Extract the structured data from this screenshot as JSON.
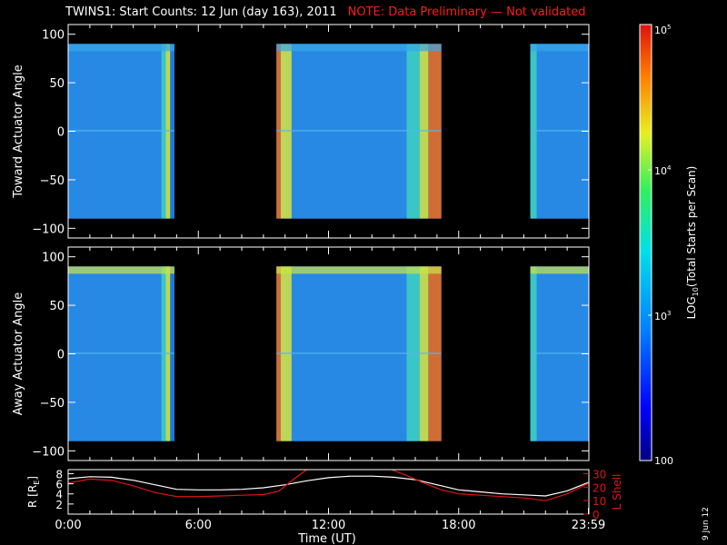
{
  "title": "TWINS1: Start Counts: 12 Jun (day 163), 2011",
  "note": "NOTE: Data Preliminary — Not validated",
  "date_stamp": "9 Jun 12",
  "colors": {
    "background": "#000000",
    "axes": "#ffffff",
    "note": "#ff1a1a",
    "lshell": "#e01414",
    "radius": "#ffffff"
  },
  "chart_data": [
    {
      "type": "heatmap",
      "panel": "toward",
      "ylabel": "Toward Actuator Angle",
      "ylim": [
        -110,
        110
      ],
      "yticks": [
        100,
        50,
        0,
        -50,
        -100
      ],
      "xlim_hours": [
        0,
        24
      ],
      "data_ylim": [
        -90,
        90
      ],
      "coverage_hours": [
        [
          0.0,
          4.9
        ],
        [
          9.6,
          17.2
        ],
        [
          21.3,
          24.0
        ]
      ],
      "value_bands": [
        {
          "t0": 0.0,
          "t1": 4.3,
          "level": "low"
        },
        {
          "t0": 4.3,
          "t1": 4.5,
          "level": "mid"
        },
        {
          "t0": 4.5,
          "t1": 4.7,
          "level": "high"
        },
        {
          "t0": 9.6,
          "t1": 9.8,
          "level": "max"
        },
        {
          "t0": 9.8,
          "t1": 10.3,
          "level": "high"
        },
        {
          "t0": 10.3,
          "t1": 15.6,
          "level": "low"
        },
        {
          "t0": 15.6,
          "t1": 16.2,
          "level": "mid"
        },
        {
          "t0": 16.2,
          "t1": 16.6,
          "level": "high"
        },
        {
          "t0": 16.6,
          "t1": 17.2,
          "level": "max"
        },
        {
          "t0": 21.3,
          "t1": 21.6,
          "level": "mid"
        },
        {
          "t0": 21.6,
          "t1": 24.0,
          "level": "low"
        }
      ]
    },
    {
      "type": "heatmap",
      "panel": "away",
      "ylabel": "Away Actuator Angle",
      "ylim": [
        -110,
        110
      ],
      "yticks": [
        100,
        50,
        0,
        -50,
        -100
      ],
      "xlim_hours": [
        0,
        24
      ],
      "data_ylim": [
        -90,
        90
      ],
      "coverage_hours": [
        [
          0.0,
          4.9
        ],
        [
          9.6,
          17.2
        ],
        [
          21.3,
          24.0
        ]
      ],
      "value_bands": [
        {
          "t0": 0.0,
          "t1": 4.3,
          "level": "low"
        },
        {
          "t0": 4.3,
          "t1": 4.5,
          "level": "mid"
        },
        {
          "t0": 4.5,
          "t1": 4.7,
          "level": "high"
        },
        {
          "t0": 9.6,
          "t1": 9.8,
          "level": "max"
        },
        {
          "t0": 9.8,
          "t1": 10.3,
          "level": "high"
        },
        {
          "t0": 10.3,
          "t1": 15.6,
          "level": "low"
        },
        {
          "t0": 15.6,
          "t1": 16.2,
          "level": "mid"
        },
        {
          "t0": 16.2,
          "t1": 16.6,
          "level": "high"
        },
        {
          "t0": 16.6,
          "t1": 17.2,
          "level": "max"
        },
        {
          "t0": 21.3,
          "t1": 21.6,
          "level": "mid"
        },
        {
          "t0": 21.6,
          "t1": 24.0,
          "level": "low"
        }
      ]
    },
    {
      "type": "line",
      "panel": "orbit",
      "xlabel": "Time (UT)",
      "ylabel": "R [R",
      "ylabel_sub": "E",
      "ylabel_end": "]",
      "ylim": [
        0,
        8.8
      ],
      "yticks": [
        8,
        6,
        4,
        2
      ],
      "y2label": "L Shell",
      "y2lim": [
        0,
        33
      ],
      "y2ticks": [
        30,
        20,
        10,
        0
      ],
      "xticks": [
        "0:00",
        "6:00",
        "12:00",
        "18:00",
        "23:59"
      ],
      "xtick_hours": [
        0,
        6,
        12,
        18,
        23.98
      ],
      "series": [
        {
          "name": "",
          "axis": "left",
          "color": "#ffffff",
          "x": [
            0,
            1,
            2,
            3,
            4,
            5,
            6,
            7,
            8,
            9,
            10,
            11,
            12,
            13,
            14,
            15,
            16,
            17,
            18,
            19,
            20,
            21,
            22,
            23,
            24
          ],
          "y": [
            7.0,
            7.4,
            7.3,
            6.7,
            5.8,
            4.9,
            4.8,
            4.8,
            4.9,
            5.2,
            5.8,
            6.6,
            7.2,
            7.5,
            7.5,
            7.3,
            6.8,
            5.8,
            4.8,
            4.4,
            4.0,
            3.8,
            3.6,
            4.6,
            6.3
          ]
        },
        {
          "name": "",
          "axis": "right",
          "color": "#e01414",
          "x": [
            0,
            1,
            2,
            3,
            4,
            5,
            6,
            7,
            8,
            9,
            9.7,
            10.4,
            11.0
          ],
          "y": [
            23,
            26,
            25,
            21,
            16,
            13,
            13,
            13.5,
            14,
            14.5,
            17,
            26,
            33
          ]
        },
        {
          "name": "",
          "axis": "right",
          "color": "#e01414",
          "x": [
            14.9,
            15.7,
            16.4,
            17.2,
            18,
            19,
            20,
            21,
            22,
            23,
            24
          ],
          "y": [
            33,
            28,
            23,
            18,
            15,
            14,
            13,
            12,
            10,
            15,
            23
          ]
        }
      ]
    }
  ],
  "colorbar": {
    "label_pre": "LOG",
    "label_sub": "10",
    "label_post": "(Total Starts per Scan)",
    "scale": "log",
    "range": [
      100,
      100000
    ],
    "tick_labels": [
      {
        "base": "10",
        "exp": "5",
        "value": 100000
      },
      {
        "base": "10",
        "exp": "4",
        "value": 10000
      },
      {
        "base": "10",
        "exp": "3",
        "value": 1000
      },
      {
        "base": "100",
        "exp": "",
        "value": 100
      }
    ]
  }
}
